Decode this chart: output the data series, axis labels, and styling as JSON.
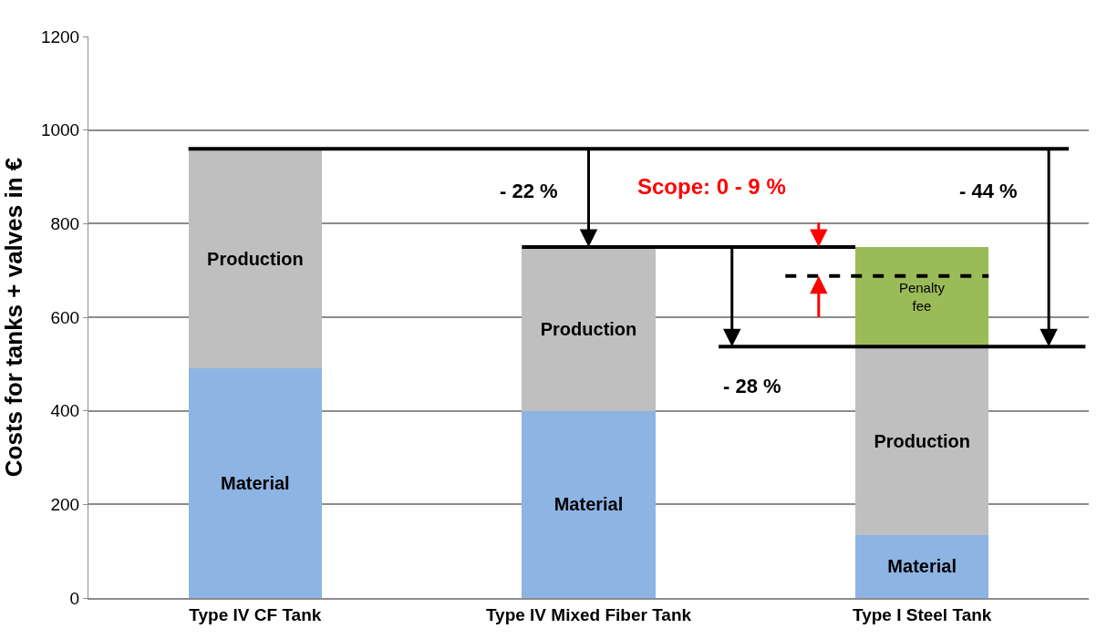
{
  "chart_data": {
    "type": "bar",
    "stacked": true,
    "ylabel": "Costs for tanks + valves in €",
    "categories": [
      "Type IV CF Tank",
      "Type IV Mixed Fiber Tank",
      "Type I Steel Tank"
    ],
    "series": [
      {
        "name": "Material",
        "color": "#8eb4e3",
        "values": [
          490,
          400,
          135
        ]
      },
      {
        "name": "Production",
        "color": "#bfbfbf",
        "values": [
          470,
          350,
          402
        ]
      },
      {
        "name": "Penalty fee",
        "color": "#9bbb59",
        "values": [
          null,
          null,
          213
        ]
      }
    ],
    "ylim": [
      0,
      1200
    ],
    "yticks": [
      0,
      200,
      400,
      600,
      800,
      1000,
      1200
    ],
    "grid": "y",
    "legend": false,
    "ref_lines": [
      {
        "axis": "y",
        "value": 960,
        "color": "#000000",
        "line_style": "solid"
      },
      {
        "axis": "y",
        "value": 750,
        "color": "#000000",
        "line_style": "solid"
      },
      {
        "axis": "y",
        "value": 537,
        "color": "#000000",
        "line_style": "solid"
      },
      {
        "axis": "y",
        "value": 688,
        "color": "#000000",
        "line_style": "dashed"
      }
    ],
    "annotations": [
      "- 22 %",
      "Scope: 0 - 9 %",
      "- 44 %",
      "- 28 %"
    ]
  }
}
